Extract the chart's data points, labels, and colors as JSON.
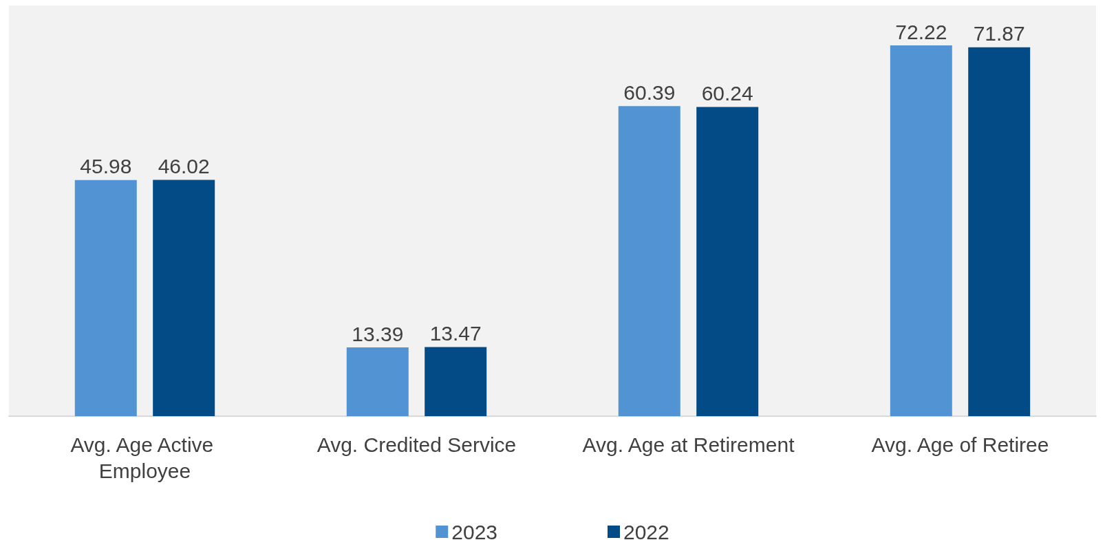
{
  "chart_data": {
    "type": "bar",
    "categories": [
      "Avg. Age Active Employee",
      "Avg. Credited Service",
      "Avg. Age at Retirement",
      "Avg. Age of Retiree"
    ],
    "series": [
      {
        "name": "2023",
        "color": "#5294d3",
        "values": [
          45.98,
          13.39,
          60.39,
          72.22
        ]
      },
      {
        "name": "2022",
        "color": "#024b86",
        "values": [
          46.02,
          13.47,
          60.24,
          71.87
        ]
      }
    ],
    "data_labels": true,
    "legend": "bottom"
  }
}
